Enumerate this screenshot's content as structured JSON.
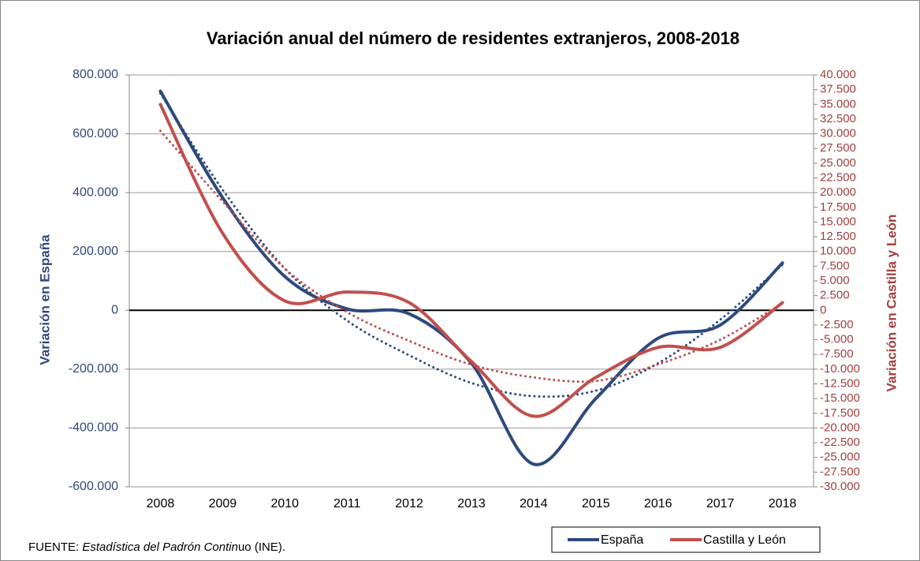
{
  "chart_data": {
    "type": "line",
    "title": "Variación anual del número de residentes extranjeros, 2008-2018",
    "y_label": "Variación en España",
    "y2_label": "Variación en Castilla y León",
    "source": [
      "FUENTE: ",
      "Estadística del Padrón Contin",
      "uo (INE)."
    ],
    "categories": [
      "2008",
      "2009",
      "2010",
      "2011",
      "2012",
      "2013",
      "2014",
      "2015",
      "2016",
      "2017",
      "2018"
    ],
    "series": [
      {
        "name": "España",
        "color": "#2e4a7d",
        "axis": "y",
        "values": [
          745000,
          383000,
          115000,
          5000,
          -12000,
          -180000,
          -523000,
          -300000,
          -95000,
          -50000,
          161000
        ],
        "trend": [
          737000,
          410000,
          142000,
          -35000,
          -153000,
          -247000,
          -292000,
          -273000,
          -180000,
          -32000,
          155000
        ]
      },
      {
        "name": "Castilla y León",
        "color": "#c0504d",
        "axis": "y2",
        "values": [
          35000,
          13100,
          1600,
          3100,
          1300,
          -8700,
          -18000,
          -11400,
          -6300,
          -6300,
          1300
        ],
        "trend": [
          30500,
          18500,
          7100,
          -300,
          -5200,
          -9250,
          -11400,
          -12000,
          -9200,
          -5000,
          1200
        ]
      }
    ],
    "ylim": [
      -600000,
      800000
    ],
    "yticks": [
      {
        "value": -600000,
        "label": "-600.000"
      },
      {
        "value": -400000,
        "label": "-400.000"
      },
      {
        "value": -200000,
        "label": "-200.000"
      },
      0,
      {
        "value": 200000,
        "label": "200.000"
      },
      {
        "value": 400000,
        "label": "400.000"
      },
      {
        "value": 600000,
        "label": "600.000"
      },
      {
        "value": 800000,
        "label": "800.000"
      }
    ],
    "y2lim": [
      -30000,
      40000
    ],
    "y2ticks": [
      {
        "value": -30000,
        "label": "-30.000"
      },
      {
        "value": -27500,
        "label": "-27.500"
      },
      {
        "value": -25000,
        "label": "-25.000"
      },
      {
        "value": -22500,
        "label": "-22.500"
      },
      {
        "value": -20000,
        "label": "-20.000"
      },
      {
        "value": -17500,
        "label": "-17.500"
      },
      {
        "value": -15000,
        "label": "-15.000"
      },
      {
        "value": -12500,
        "label": "-12.500"
      },
      {
        "value": -10000,
        "label": "-10.000"
      },
      {
        "value": -7500,
        "label": "-7.500"
      },
      {
        "value": -5000,
        "label": "-5.000"
      },
      {
        "value": -2500,
        "label": "-2.500"
      },
      0,
      {
        "value": 2500,
        "label": "2.500"
      },
      {
        "value": 5000,
        "label": "5.000"
      },
      {
        "value": 7500,
        "label": "7.500"
      },
      {
        "value": 10000,
        "label": "10.000"
      },
      {
        "value": 12500,
        "label": "12.500"
      },
      {
        "value": 15000,
        "label": "15.000"
      },
      {
        "value": 17500,
        "label": "17.500"
      },
      {
        "value": 20000,
        "label": "20.000"
      },
      {
        "value": 22500,
        "label": "22.500"
      },
      {
        "value": 25000,
        "label": "25.000"
      },
      {
        "value": 27500,
        "label": "27.500"
      },
      {
        "value": 30000,
        "label": "30.000"
      },
      {
        "value": 32500,
        "label": "32.500"
      },
      {
        "value": 35000,
        "label": "35.000"
      },
      {
        "value": 37500,
        "label": "37.500"
      },
      {
        "value": 40000,
        "label": "40.000"
      }
    ],
    "grid": true,
    "legend": "bottom-right"
  }
}
